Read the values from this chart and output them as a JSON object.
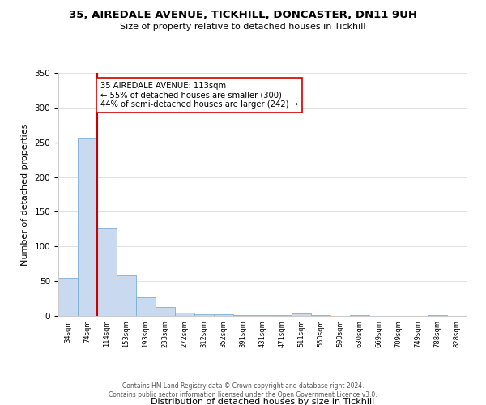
{
  "title": "35, AIREDALE AVENUE, TICKHILL, DONCASTER, DN11 9UH",
  "subtitle": "Size of property relative to detached houses in Tickhill",
  "xlabel": "Distribution of detached houses by size in Tickhill",
  "ylabel": "Number of detached properties",
  "footer_lines": [
    "Contains HM Land Registry data © Crown copyright and database right 2024.",
    "Contains public sector information licensed under the Open Government Licence v3.0."
  ],
  "bin_labels": [
    "34sqm",
    "74sqm",
    "114sqm",
    "153sqm",
    "193sqm",
    "233sqm",
    "272sqm",
    "312sqm",
    "352sqm",
    "391sqm",
    "431sqm",
    "471sqm",
    "511sqm",
    "550sqm",
    "590sqm",
    "630sqm",
    "669sqm",
    "709sqm",
    "749sqm",
    "788sqm",
    "828sqm"
  ],
  "bar_values": [
    55,
    257,
    126,
    58,
    27,
    13,
    5,
    2,
    2,
    1,
    1,
    1,
    3,
    1,
    0,
    1,
    0,
    0,
    0,
    1,
    0
  ],
  "bar_color": "#c9d9f0",
  "bar_edge_color": "#7aaed6",
  "property_line_x": 2,
  "property_line_color": "#cc0000",
  "annotation_text": "35 AIREDALE AVENUE: 113sqm\n← 55% of detached houses are smaller (300)\n44% of semi-detached houses are larger (242) →",
  "annotation_box_color": "#ffffff",
  "annotation_box_edge_color": "#cc0000",
  "ylim": [
    0,
    350
  ],
  "yticks": [
    0,
    50,
    100,
    150,
    200,
    250,
    300,
    350
  ],
  "background_color": "#ffffff"
}
